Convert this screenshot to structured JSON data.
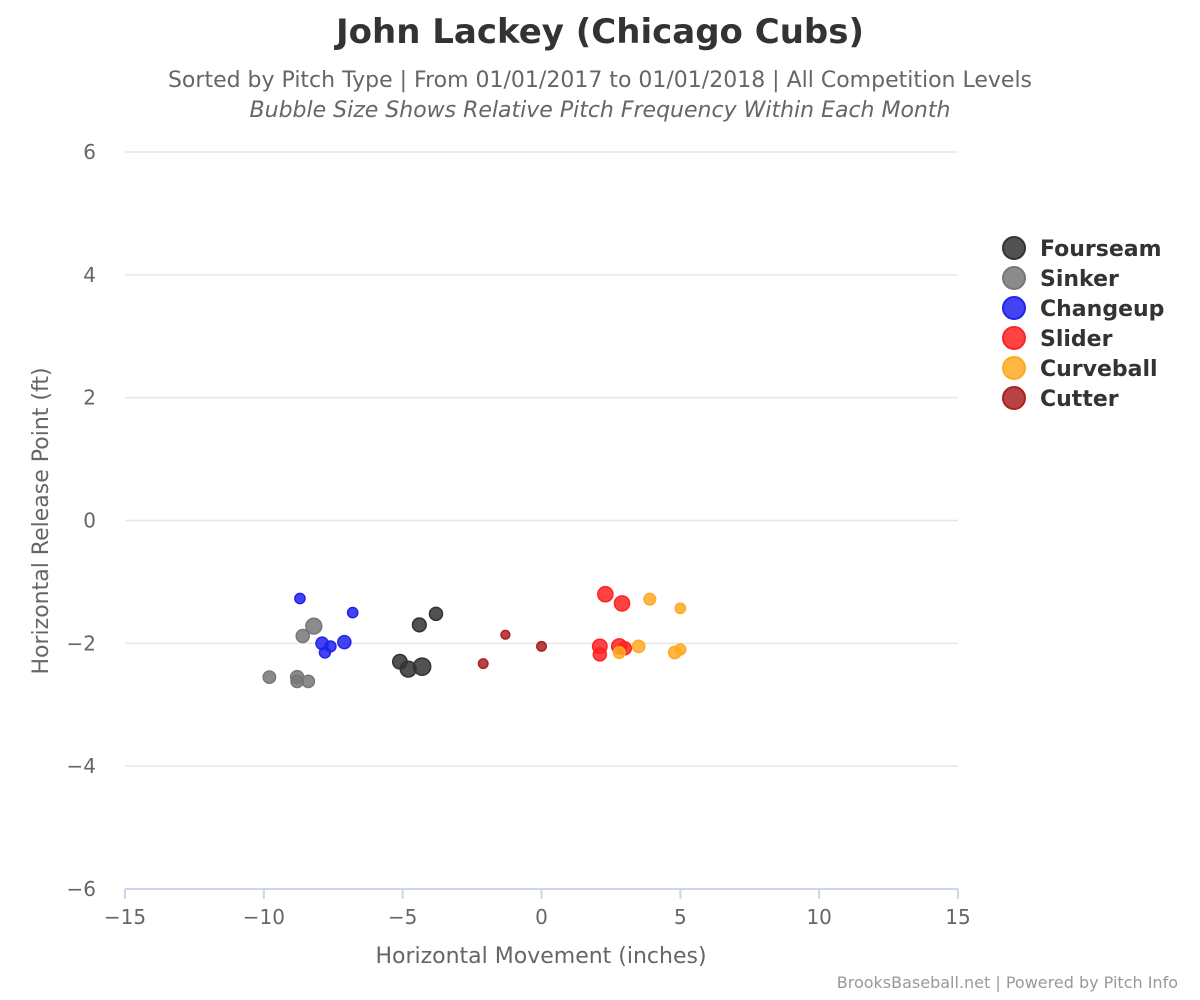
{
  "chart_data": {
    "type": "scatter",
    "title": "John Lackey (Chicago Cubs)",
    "subtitle": "Sorted by Pitch Type | From 01/01/2017 to 01/01/2018 | All Competition Levels",
    "subtitle2": "Bubble Size Shows Relative Pitch Frequency Within Each Month",
    "xlabel": "Horizontal Movement (inches)",
    "ylabel": "Horizontal Release Point (ft)",
    "xlim": [
      -15,
      15
    ],
    "ylim": [
      -6,
      6
    ],
    "xticks": [
      -15,
      -10,
      -5,
      0,
      5,
      10,
      15
    ],
    "yticks": [
      -6,
      -4,
      -2,
      0,
      2,
      4,
      6
    ],
    "xtick_labels": [
      "−15",
      "−10",
      "−5",
      "0",
      "5",
      "10",
      "15"
    ],
    "ytick_labels": [
      "−6",
      "−4",
      "−2",
      "0",
      "2",
      "4",
      "6"
    ],
    "grid": "horizontal",
    "legend_position": "right",
    "series": [
      {
        "name": "Fourseam",
        "color": "#333333",
        "points": [
          {
            "x": -4.4,
            "y": -1.7,
            "size": 0.55
          },
          {
            "x": -3.8,
            "y": -1.52,
            "size": 0.5
          },
          {
            "x": -5.1,
            "y": -2.3,
            "size": 0.6
          },
          {
            "x": -4.8,
            "y": -2.42,
            "size": 0.7
          },
          {
            "x": -4.3,
            "y": -2.38,
            "size": 0.8
          }
        ]
      },
      {
        "name": "Sinker",
        "color": "#777777",
        "points": [
          {
            "x": -8.2,
            "y": -1.72,
            "size": 0.7
          },
          {
            "x": -8.6,
            "y": -1.88,
            "size": 0.5
          },
          {
            "x": -9.8,
            "y": -2.55,
            "size": 0.45
          },
          {
            "x": -8.8,
            "y": -2.55,
            "size": 0.5
          },
          {
            "x": -8.8,
            "y": -2.62,
            "size": 0.45
          },
          {
            "x": -8.4,
            "y": -2.62,
            "size": 0.45
          }
        ]
      },
      {
        "name": "Changeup",
        "color": "#2222ee",
        "points": [
          {
            "x": -8.7,
            "y": -1.27,
            "size": 0.3
          },
          {
            "x": -6.8,
            "y": -1.5,
            "size": 0.3
          },
          {
            "x": -7.9,
            "y": -2.0,
            "size": 0.45
          },
          {
            "x": -7.6,
            "y": -2.05,
            "size": 0.35
          },
          {
            "x": -7.8,
            "y": -2.15,
            "size": 0.35
          },
          {
            "x": -7.1,
            "y": -1.98,
            "size": 0.5
          }
        ]
      },
      {
        "name": "Slider",
        "color": "#ff2222",
        "points": [
          {
            "x": 2.3,
            "y": -1.2,
            "size": 0.65
          },
          {
            "x": 2.9,
            "y": -1.35,
            "size": 0.65
          },
          {
            "x": 2.1,
            "y": -2.05,
            "size": 0.6
          },
          {
            "x": 2.8,
            "y": -2.05,
            "size": 0.65
          },
          {
            "x": 3.0,
            "y": -2.08,
            "size": 0.5
          },
          {
            "x": 2.1,
            "y": -2.18,
            "size": 0.5
          }
        ]
      },
      {
        "name": "Curveball",
        "color": "#ffaa22",
        "points": [
          {
            "x": 3.9,
            "y": -1.28,
            "size": 0.4
          },
          {
            "x": 5.0,
            "y": -1.43,
            "size": 0.3
          },
          {
            "x": 3.5,
            "y": -2.05,
            "size": 0.45
          },
          {
            "x": 2.8,
            "y": -2.15,
            "size": 0.4
          },
          {
            "x": 4.8,
            "y": -2.15,
            "size": 0.45
          },
          {
            "x": 5.0,
            "y": -2.1,
            "size": 0.35
          }
        ]
      },
      {
        "name": "Cutter",
        "color": "#aa2222",
        "points": [
          {
            "x": -1.3,
            "y": -1.86,
            "size": 0.2
          },
          {
            "x": 0.0,
            "y": -2.05,
            "size": 0.25
          },
          {
            "x": -2.1,
            "y": -2.33,
            "size": 0.25
          }
        ]
      }
    ]
  },
  "credits": "BrooksBaseball.net | Powered by Pitch Info"
}
